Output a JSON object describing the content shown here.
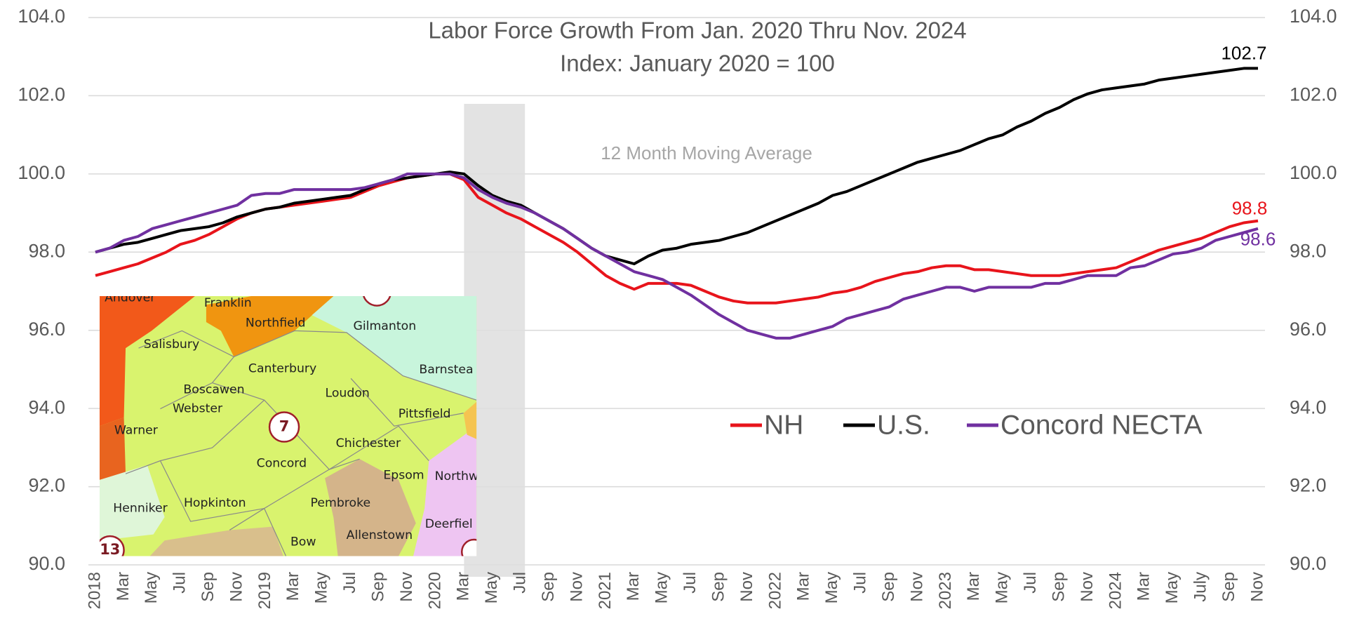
{
  "chart_data": {
    "type": "line",
    "title": "Labor Force Growth From Jan. 2020 Thru Nov. 2024",
    "subtitle": "Index: January 2020 = 100",
    "annotation": "12 Month Moving Average",
    "shaded_categories": [
      26,
      30
    ],
    "categories": [
      "2018",
      null,
      "Mar",
      null,
      "May",
      null,
      "Jul",
      null,
      "Sep",
      null,
      "Nov",
      null,
      "2019",
      null,
      "Mar",
      null,
      "May",
      null,
      "Jul",
      null,
      "Sep",
      null,
      "Nov",
      null,
      "2020",
      null,
      "Mar",
      null,
      "May",
      null,
      "Jul",
      null,
      "Sep",
      null,
      "Nov",
      null,
      "2021",
      null,
      "Mar",
      null,
      "May",
      null,
      "Jul",
      null,
      "Sep",
      null,
      "Nov",
      null,
      "2022",
      null,
      "Mar",
      null,
      "May",
      null,
      "Jul",
      null,
      "Sep",
      null,
      "Nov",
      null,
      "2023",
      null,
      "Mar",
      null,
      "May",
      null,
      "Jul",
      null,
      "Sep",
      null,
      "Nov",
      null,
      "2024",
      null,
      "Mar",
      null,
      "May",
      null,
      "July",
      null,
      "Sep",
      null,
      "Nov"
    ],
    "series": [
      {
        "name": "NH",
        "color": "#e8141b",
        "values": [
          97.4,
          97.5,
          97.6,
          97.7,
          97.85,
          98.0,
          98.2,
          98.3,
          98.45,
          98.65,
          98.85,
          99.0,
          99.1,
          99.15,
          99.2,
          99.25,
          99.3,
          99.35,
          99.4,
          99.55,
          99.7,
          99.8,
          99.9,
          99.95,
          100.0,
          100.0,
          99.85,
          99.4,
          99.2,
          99.0,
          98.85,
          98.65,
          98.45,
          98.25,
          98.0,
          97.7,
          97.4,
          97.2,
          97.05,
          97.2,
          97.2,
          97.2,
          97.15,
          97.0,
          96.85,
          96.75,
          96.7,
          96.7,
          96.7,
          96.75,
          96.8,
          96.85,
          96.95,
          97.0,
          97.1,
          97.25,
          97.35,
          97.45,
          97.5,
          97.6,
          97.65,
          97.65,
          97.55,
          97.55,
          97.5,
          97.45,
          97.4,
          97.4,
          97.4,
          97.45,
          97.5,
          97.55,
          97.6,
          97.75,
          97.9,
          98.05,
          98.15,
          98.25,
          98.35,
          98.5,
          98.65,
          98.75,
          98.8
        ]
      },
      {
        "name": "U.S.",
        "color": "#000000",
        "values": [
          98.0,
          98.1,
          98.2,
          98.25,
          98.35,
          98.45,
          98.55,
          98.6,
          98.65,
          98.75,
          98.9,
          99.0,
          99.1,
          99.15,
          99.25,
          99.3,
          99.35,
          99.4,
          99.45,
          99.6,
          99.75,
          99.85,
          99.9,
          99.95,
          100.0,
          100.05,
          100.0,
          99.7,
          99.45,
          99.3,
          99.2,
          99.0,
          98.8,
          98.6,
          98.35,
          98.1,
          97.9,
          97.8,
          97.7,
          97.9,
          98.05,
          98.1,
          98.2,
          98.25,
          98.3,
          98.4,
          98.5,
          98.65,
          98.8,
          98.95,
          99.1,
          99.25,
          99.45,
          99.55,
          99.7,
          99.85,
          100.0,
          100.15,
          100.3,
          100.4,
          100.5,
          100.6,
          100.75,
          100.9,
          101.0,
          101.2,
          101.35,
          101.55,
          101.7,
          101.9,
          102.05,
          102.15,
          102.2,
          102.25,
          102.3,
          102.4,
          102.45,
          102.5,
          102.55,
          102.6,
          102.65,
          102.7,
          102.7
        ]
      },
      {
        "name": "Concord NECTA",
        "color": "#7030a0",
        "values": [
          98.0,
          98.1,
          98.3,
          98.4,
          98.6,
          98.7,
          98.8,
          98.9,
          99.0,
          99.1,
          99.2,
          99.45,
          99.5,
          99.5,
          99.6,
          99.6,
          99.6,
          99.6,
          99.6,
          99.65,
          99.75,
          99.85,
          100.0,
          100.0,
          100.0,
          100.0,
          99.9,
          99.6,
          99.4,
          99.25,
          99.15,
          99.0,
          98.8,
          98.6,
          98.35,
          98.1,
          97.9,
          97.7,
          97.5,
          97.4,
          97.3,
          97.1,
          96.9,
          96.65,
          96.4,
          96.2,
          96.0,
          95.9,
          95.8,
          95.8,
          95.9,
          96.0,
          96.1,
          96.3,
          96.4,
          96.5,
          96.6,
          96.8,
          96.9,
          97.0,
          97.1,
          97.1,
          97.0,
          97.1,
          97.1,
          97.1,
          97.1,
          97.2,
          97.2,
          97.3,
          97.4,
          97.4,
          97.4,
          97.6,
          97.65,
          97.8,
          97.95,
          98.0,
          98.1,
          98.3,
          98.4,
          98.5,
          98.6
        ]
      }
    ],
    "ylim": [
      90,
      104
    ],
    "yticks": [
      {
        "value": 90,
        "label": "90.0"
      },
      {
        "value": 92,
        "label": "92.0"
      },
      {
        "value": 94,
        "label": "94.0"
      },
      {
        "value": 96,
        "label": "96.0"
      },
      {
        "value": 98,
        "label": "98.0"
      },
      {
        "value": 100,
        "label": "100.0"
      },
      {
        "value": 102,
        "label": "102.0"
      },
      {
        "value": 104,
        "label": "104.0"
      }
    ],
    "y2lim": [
      90,
      104
    ],
    "y2ticks": [
      {
        "value": 90,
        "label": "90.0"
      },
      {
        "value": 92,
        "label": "92.0"
      },
      {
        "value": 94,
        "label": "94.0"
      },
      {
        "value": 96,
        "label": "96.0"
      },
      {
        "value": 98,
        "label": "98.0"
      },
      {
        "value": 100,
        "label": "100.0"
      },
      {
        "value": 102,
        "label": "102.0"
      },
      {
        "value": 104,
        "label": "104.0"
      }
    ],
    "grid": true,
    "inset_map_labels": [
      "Andover",
      "Franklin",
      "Northfield",
      "Gilmanton",
      "Salisbury",
      "Canterbury",
      "Barnstea",
      "Boscawen",
      "Webster",
      "Loudon",
      "Pittsfield",
      "Warner",
      "7",
      "Chichester",
      "Concord",
      "Epsom",
      "Northw",
      "Henniker",
      "Hopkinton",
      "Pembroke",
      "Deerfiel",
      "Bow",
      "Allenstown",
      "13"
    ]
  }
}
